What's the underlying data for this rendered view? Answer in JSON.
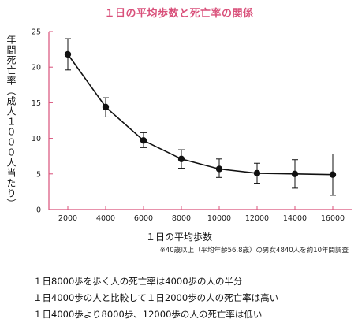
{
  "chart_data": {
    "type": "line",
    "title": "１日の平均歩数と死亡率の関係",
    "xlabel": "１日の平均歩数",
    "ylabel": "年間死亡率（成人１０００人当たり）",
    "x": [
      2000,
      4000,
      6000,
      8000,
      10000,
      12000,
      14000,
      16000
    ],
    "series": [
      {
        "values": [
          21.8,
          14.4,
          9.7,
          7.1,
          5.7,
          5.1,
          5.0,
          4.9
        ],
        "error_low": [
          19.6,
          13.0,
          8.7,
          5.8,
          4.5,
          3.7,
          3.0,
          2.0
        ],
        "error_high": [
          24.0,
          15.7,
          10.8,
          8.4,
          7.1,
          6.5,
          7.0,
          7.8
        ]
      }
    ],
    "ylim": [
      0,
      25
    ],
    "yticks": [
      0,
      5,
      10,
      15,
      20,
      25
    ],
    "xticks": [
      2000,
      4000,
      6000,
      8000,
      10000,
      12000,
      14000,
      16000
    ],
    "grid": false,
    "axis_color": "#d9507a",
    "title_color": "#d9507a",
    "line_color": "#111111",
    "note": "※40歳以上（平均年齢56.8歳）の男女4840人を約10年間調査"
  },
  "summary": [
    "１日8000歩を歩く人の死亡率は4000歩の人の半分",
    "１日4000歩の人と比較して１日2000歩の人の死亡率は高い",
    "１日4000歩より8000歩、12000歩の人の死亡率は低い"
  ]
}
